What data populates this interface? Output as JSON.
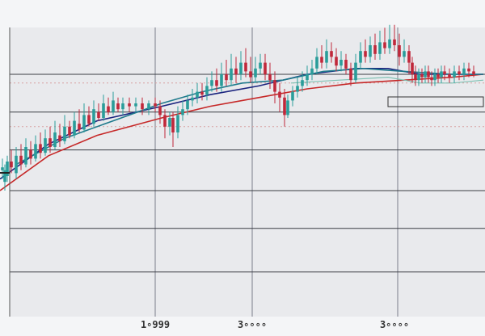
{
  "chart_data": {
    "type": "line",
    "subtype": "candlestick-with-moving-averages",
    "title": "",
    "xlabel": "",
    "ylabel": "",
    "xlim": [
      0,
      600
    ],
    "ylim": [
      0,
      100
    ],
    "grid": true,
    "x_ticks": [
      {
        "label": "1∘999",
        "x": 192
      },
      {
        "label": "3∘∘∘∘",
        "x": 312
      },
      {
        "label": "3∘∘∘∘",
        "x": 488
      }
    ],
    "grid_x": [
      192,
      312,
      492
    ],
    "grid_y": [
      12,
      27,
      40,
      54,
      67,
      80
    ],
    "dashed_y": [
      77,
      62
    ],
    "colors": {
      "up": "#2a9d9a",
      "down": "#c0283a",
      "ma_fast": "#1f7a8c",
      "ma_slow": "#c62828",
      "ma_long": "#1a237e",
      "ma_light": "#7fc1b3"
    },
    "candles": [
      [
        3,
        47,
        48,
        44,
        51
      ],
      [
        6,
        43,
        47,
        40,
        49
      ],
      [
        9,
        45,
        50,
        43,
        52
      ],
      [
        14,
        50,
        48,
        46,
        54
      ],
      [
        20,
        46,
        52,
        44,
        55
      ],
      [
        26,
        52,
        49,
        47,
        56
      ],
      [
        32,
        49,
        55,
        48,
        58
      ],
      [
        38,
        54,
        51,
        49,
        57
      ],
      [
        44,
        51,
        56,
        50,
        59
      ],
      [
        50,
        56,
        53,
        51,
        60
      ],
      [
        56,
        53,
        58,
        52,
        61
      ],
      [
        62,
        58,
        55,
        53,
        62
      ],
      [
        68,
        55,
        60,
        54,
        64
      ],
      [
        74,
        59,
        57,
        55,
        63
      ],
      [
        80,
        57,
        62,
        56,
        66
      ],
      [
        86,
        62,
        59,
        58,
        64
      ],
      [
        92,
        59,
        64,
        58,
        67
      ],
      [
        98,
        63,
        61,
        60,
        68
      ],
      [
        104,
        61,
        66,
        60,
        70
      ],
      [
        110,
        66,
        63,
        62,
        69
      ],
      [
        116,
        63,
        68,
        62,
        71
      ],
      [
        122,
        67,
        65,
        64,
        70
      ],
      [
        128,
        65,
        70,
        64,
        73
      ],
      [
        134,
        69,
        67,
        66,
        72
      ],
      [
        140,
        67,
        71,
        66,
        74
      ],
      [
        146,
        70,
        68,
        67,
        72
      ],
      [
        152,
        68,
        70,
        66,
        72
      ],
      [
        160,
        70,
        69,
        67,
        72
      ],
      [
        168,
        69,
        70,
        67,
        72
      ],
      [
        176,
        70,
        68,
        66,
        72
      ],
      [
        184,
        68,
        70,
        66,
        71
      ],
      [
        192,
        70,
        69,
        67,
        72
      ],
      [
        198,
        69,
        66,
        63,
        71
      ],
      [
        204,
        66,
        62,
        58,
        68
      ],
      [
        210,
        62,
        65,
        59,
        67
      ],
      [
        214,
        65,
        60,
        55,
        67
      ],
      [
        220,
        60,
        66,
        58,
        69
      ],
      [
        226,
        66,
        68,
        64,
        71
      ],
      [
        232,
        68,
        71,
        66,
        73
      ],
      [
        238,
        71,
        72,
        69,
        75
      ],
      [
        244,
        72,
        74,
        70,
        77
      ],
      [
        250,
        74,
        73,
        71,
        77
      ],
      [
        256,
        73,
        76,
        71,
        79
      ],
      [
        262,
        76,
        78,
        74,
        81
      ],
      [
        268,
        78,
        76,
        74,
        82
      ],
      [
        274,
        76,
        80,
        74,
        84
      ],
      [
        280,
        80,
        78,
        76,
        85
      ],
      [
        286,
        78,
        82,
        76,
        87
      ],
      [
        292,
        82,
        80,
        77,
        86
      ],
      [
        298,
        80,
        84,
        78,
        88
      ],
      [
        304,
        84,
        81,
        79,
        89
      ],
      [
        310,
        81,
        79,
        77,
        86
      ],
      [
        316,
        79,
        82,
        77,
        86
      ],
      [
        322,
        82,
        84,
        80,
        87
      ],
      [
        328,
        84,
        80,
        78,
        87
      ],
      [
        334,
        80,
        78,
        75,
        84
      ],
      [
        340,
        78,
        74,
        70,
        81
      ],
      [
        346,
        74,
        72,
        67,
        77
      ],
      [
        352,
        72,
        66,
        62,
        75
      ],
      [
        356,
        66,
        71,
        65,
        73
      ],
      [
        362,
        71,
        74,
        69,
        76
      ],
      [
        368,
        74,
        76,
        72,
        79
      ],
      [
        374,
        76,
        78,
        74,
        81
      ],
      [
        380,
        78,
        80,
        76,
        83
      ],
      [
        386,
        80,
        82,
        78,
        85
      ],
      [
        392,
        82,
        86,
        80,
        89
      ],
      [
        398,
        86,
        84,
        82,
        90
      ],
      [
        404,
        84,
        88,
        82,
        92
      ],
      [
        410,
        88,
        86,
        84,
        91
      ],
      [
        416,
        86,
        83,
        81,
        89
      ],
      [
        422,
        83,
        85,
        81,
        88
      ],
      [
        428,
        85,
        82,
        80,
        87
      ],
      [
        434,
        82,
        78,
        76,
        84
      ],
      [
        440,
        78,
        84,
        77,
        87
      ],
      [
        446,
        84,
        88,
        82,
        91
      ],
      [
        452,
        88,
        86,
        84,
        92
      ],
      [
        458,
        86,
        90,
        84,
        93
      ],
      [
        464,
        90,
        87,
        85,
        94
      ],
      [
        470,
        87,
        91,
        85,
        95
      ],
      [
        476,
        91,
        89,
        87,
        96
      ],
      [
        482,
        89,
        92,
        87,
        97
      ],
      [
        488,
        92,
        90,
        88,
        97
      ],
      [
        494,
        90,
        86,
        83,
        94
      ],
      [
        500,
        86,
        88,
        84,
        92
      ],
      [
        506,
        88,
        84,
        80,
        90
      ],
      [
        510,
        84,
        80,
        77,
        86
      ],
      [
        514,
        80,
        78,
        76,
        83
      ],
      [
        518,
        78,
        80,
        76,
        82
      ],
      [
        522,
        80,
        79,
        77,
        82
      ],
      [
        526,
        79,
        81,
        77,
        83
      ],
      [
        530,
        81,
        79,
        77,
        83
      ],
      [
        534,
        79,
        78,
        76,
        81
      ],
      [
        538,
        78,
        80,
        76,
        82
      ],
      [
        542,
        80,
        79,
        77,
        82
      ],
      [
        546,
        79,
        81,
        77,
        83
      ],
      [
        550,
        81,
        80,
        78,
        83
      ],
      [
        556,
        80,
        79,
        77,
        82
      ],
      [
        562,
        79,
        81,
        77,
        83
      ],
      [
        568,
        81,
        80,
        78,
        83
      ],
      [
        574,
        80,
        82,
        78,
        84
      ],
      [
        580,
        82,
        81,
        79,
        84
      ],
      [
        586,
        81,
        80,
        79,
        83
      ]
    ],
    "series": [
      {
        "style": "ma_slow",
        "points": [
          [
            0,
            40
          ],
          [
            60,
            52
          ],
          [
            120,
            59
          ],
          [
            200,
            65
          ],
          [
            260,
            69
          ],
          [
            320,
            72
          ],
          [
            380,
            75
          ],
          [
            440,
            77
          ],
          [
            500,
            78
          ],
          [
            560,
            79
          ],
          [
            598,
            80
          ]
        ]
      },
      {
        "style": "ma_long",
        "points": [
          [
            0,
            44
          ],
          [
            60,
            56
          ],
          [
            120,
            64
          ],
          [
            200,
            69
          ],
          [
            260,
            73
          ],
          [
            320,
            76
          ],
          [
            380,
            80
          ],
          [
            440,
            82
          ],
          [
            480,
            82
          ],
          [
            520,
            80
          ],
          [
            560,
            80
          ],
          [
            598,
            80
          ]
        ]
      },
      {
        "style": "ma_fast",
        "points": [
          [
            20,
            49
          ],
          [
            80,
            58
          ],
          [
            140,
            64
          ],
          [
            200,
            70
          ],
          [
            250,
            74
          ],
          [
            300,
            77
          ],
          [
            350,
            78
          ],
          [
            400,
            81
          ],
          [
            450,
            82
          ],
          [
            500,
            81
          ],
          [
            560,
            80
          ],
          [
            598,
            80
          ]
        ]
      },
      {
        "style": "ma_light",
        "points": [
          [
            360,
            77
          ],
          [
            420,
            78
          ],
          [
            480,
            79
          ],
          [
            520,
            77
          ],
          [
            560,
            77
          ],
          [
            598,
            78
          ]
        ]
      }
    ]
  }
}
